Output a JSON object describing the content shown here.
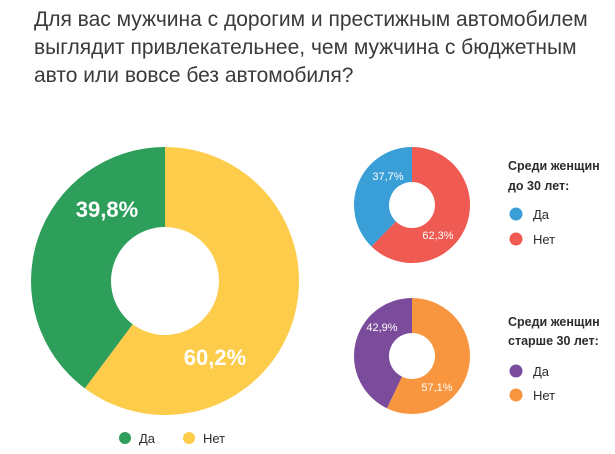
{
  "title": "Для вас мужчина с дорогим и престижным автомобилем выглядит привлекательнее, чем мужчина с бюджетным авто или вовсе без автомобиля?",
  "colors": {
    "yes_main": "#2e9e5b",
    "no_main": "#fccc4a",
    "yes_young": "#3a9fd6",
    "no_young": "#ef5a52",
    "yes_old": "#7b4b9c",
    "no_old": "#f8953f"
  },
  "chart_data": [
    {
      "type": "pie",
      "title": "",
      "categories": [
        "Да",
        "Нет"
      ],
      "values": [
        39.8,
        60.2
      ],
      "labels": [
        "39,8%",
        "60,2%"
      ]
    },
    {
      "type": "pie",
      "title": "Среди женщин до 30 лет:",
      "title_lines": [
        "Среди женщин",
        "до 30 лет:"
      ],
      "categories": [
        "Да",
        "Нет"
      ],
      "values": [
        37.7,
        62.3
      ],
      "labels": [
        "37,7%",
        "62,3%"
      ]
    },
    {
      "type": "pie",
      "title": "Среди женщин старше 30 лет:",
      "title_lines": [
        "Среди женщин",
        "старше 30 лет:"
      ],
      "categories": [
        "Да",
        "Нет"
      ],
      "values": [
        42.9,
        57.1
      ],
      "labels": [
        "42,9%",
        "57,1%"
      ]
    }
  ]
}
